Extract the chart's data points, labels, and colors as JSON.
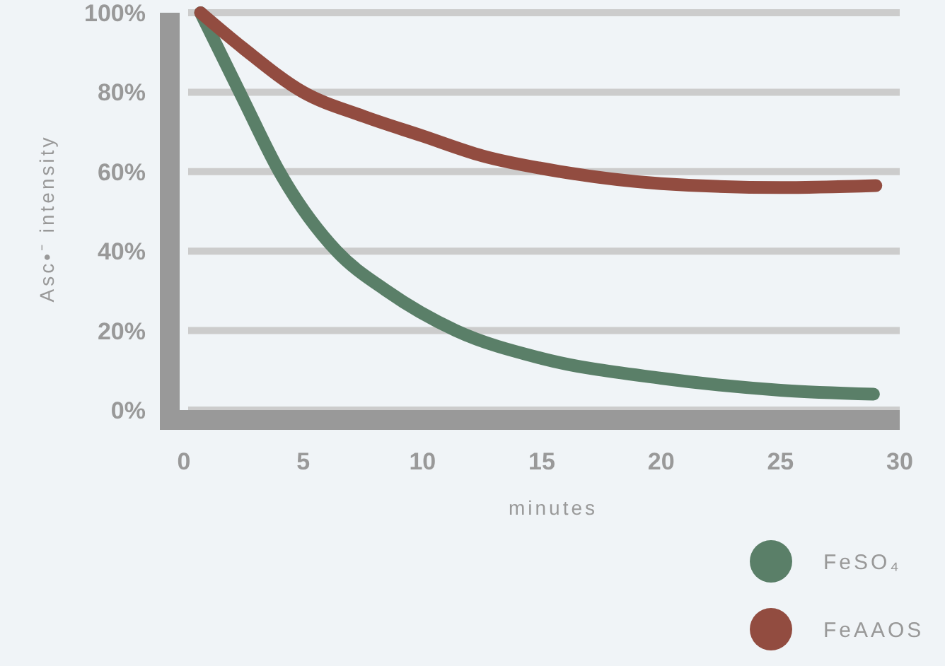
{
  "chart_data": {
    "type": "line",
    "xlabel": "minutes",
    "ylabel": "Asc•⁻ intensity",
    "xlim": [
      0,
      30
    ],
    "xticks": [
      0,
      5,
      10,
      15,
      20,
      25,
      30
    ],
    "ylim": [
      0,
      100
    ],
    "yticks": [
      {
        "value": 0,
        "label": "0%"
      },
      {
        "value": 20,
        "label": "20%"
      },
      {
        "value": 40,
        "label": "40%"
      },
      {
        "value": 60,
        "label": "60%"
      },
      {
        "value": 80,
        "label": "80%"
      },
      {
        "value": 100,
        "label": "100%"
      }
    ],
    "grid": "y",
    "legend": "bottom right",
    "marker": "none",
    "line_style": "solid",
    "series": [
      {
        "name": "FeSO₄",
        "color": "#5a7f68",
        "x": [
          0.7,
          2.5,
          4,
          6.4,
          8.5,
          11.4,
          15,
          20,
          25,
          28.9
        ],
        "values": [
          100,
          78,
          60,
          40,
          30,
          20,
          13,
          8,
          5,
          4
        ]
      },
      {
        "name": "FeAAOS",
        "color": "#924c40",
        "x": [
          0.7,
          2.5,
          5,
          7.5,
          10,
          12.5,
          15.8,
          20,
          25,
          29
        ],
        "values": [
          100,
          91,
          80,
          74,
          69,
          64,
          60,
          57,
          56,
          56.5
        ]
      }
    ]
  }
}
